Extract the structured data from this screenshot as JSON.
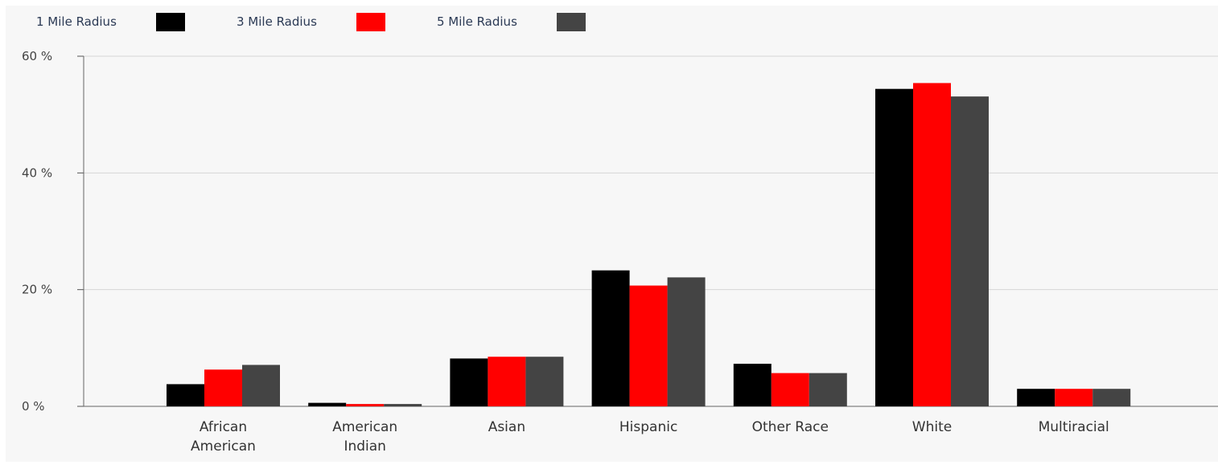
{
  "chart_data": {
    "type": "bar",
    "title": "",
    "xlabel": "",
    "ylabel": "",
    "categories": [
      [
        "African",
        "American"
      ],
      [
        "American",
        "Indian"
      ],
      [
        "Asian"
      ],
      [
        "Hispanic"
      ],
      [
        "Other Race"
      ],
      [
        "White"
      ],
      [
        "Multiracial"
      ]
    ],
    "series": [
      {
        "name": "1 Mile Radius",
        "color": "#000000",
        "values": [
          3.8,
          0.6,
          8.2,
          23.3,
          7.3,
          54.4,
          3.0
        ]
      },
      {
        "name": "3 Mile Radius",
        "color": "#ff0000",
        "values": [
          6.3,
          0.4,
          8.5,
          20.7,
          5.7,
          55.4,
          3.0
        ]
      },
      {
        "name": "5 Mile Radius",
        "color": "#444444",
        "values": [
          7.1,
          0.4,
          8.5,
          22.1,
          5.7,
          53.1,
          3.0
        ]
      }
    ],
    "ylim": [
      0,
      60
    ],
    "yticks": [
      0,
      20,
      40,
      60
    ],
    "ytick_labels": [
      "0 %",
      "20 %",
      "40 %",
      "60 %"
    ],
    "grid": true,
    "legend_position": "top-left"
  }
}
